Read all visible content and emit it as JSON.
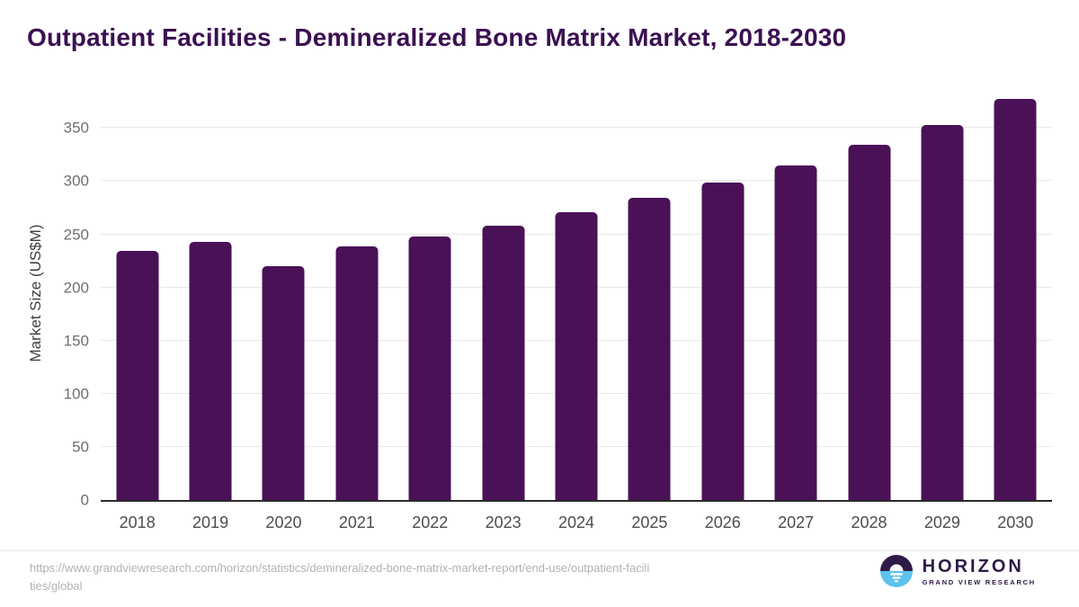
{
  "header": {
    "title": "Outpatient Facilities - Demineralized Bone Matrix Market, 2018-2030"
  },
  "chart_data": {
    "type": "bar",
    "title": "Outpatient Facilities - Demineralized Bone Matrix Market, 2018-2030",
    "categories": [
      "2018",
      "2019",
      "2020",
      "2021",
      "2022",
      "2023",
      "2024",
      "2025",
      "2026",
      "2027",
      "2028",
      "2029",
      "2030"
    ],
    "values": [
      234,
      243,
      220,
      239,
      248,
      258,
      271,
      284,
      299,
      315,
      334,
      353,
      377
    ],
    "xlabel": "",
    "ylabel": "Market Size (US$M)",
    "ylim": [
      0,
      390
    ],
    "yticks": [
      0,
      50,
      100,
      150,
      200,
      250,
      300,
      350
    ],
    "grid": "horizontal",
    "legend": "none",
    "bar_color": "#4A1156"
  },
  "colors": {
    "title_text": "#3B1052",
    "bar": "#4A1156",
    "gridline": "#e9e9e9",
    "axis_line": "#2b2b2b",
    "tick_text": "#6e6e6e",
    "xtick_text": "#4d4d4f",
    "footer_text": "#b1b1b1",
    "logo_purple": "#2E1A47",
    "logo_blue": "#5BC3EE"
  },
  "footer": {
    "source_url": "https://www.grandviewresearch.com/horizon/statistics/demineralized-bone-matrix-market-report/end-use/outpatient-facilities/global",
    "logo": {
      "brand": "HORIZON",
      "subbrand": "GRAND VIEW RESEARCH"
    }
  }
}
